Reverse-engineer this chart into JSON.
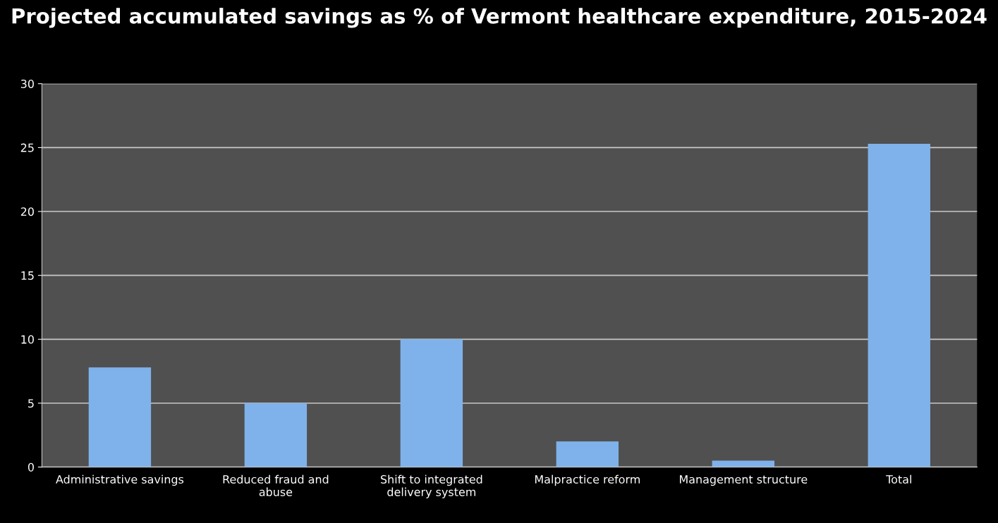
{
  "chart_data": {
    "type": "bar",
    "title": "Projected accumulated savings as % of Vermont healthcare expenditure, 2015-2024",
    "categories": [
      "Administrative savings",
      "Reduced fraud and\nabuse",
      "Shift to integrated\ndelivery system",
      "Malpractice reform",
      "Management structure",
      "Total"
    ],
    "values": [
      7.8,
      5.0,
      10.0,
      2.0,
      0.5,
      25.3
    ],
    "color": "#7fb2ea",
    "ylim": [
      0,
      30
    ],
    "yticks": [
      0,
      5,
      10,
      15,
      20,
      25,
      30
    ],
    "grid": "y"
  }
}
